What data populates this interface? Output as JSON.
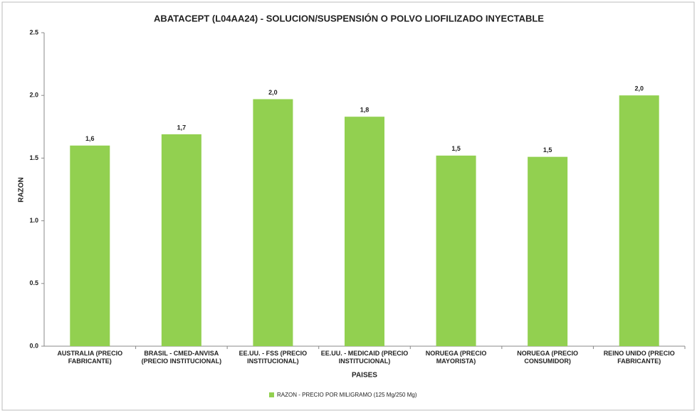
{
  "chart_data": {
    "type": "bar",
    "title": "ABATACEPT (L04AA24) - SOLUCION/SUSPENSIÓN O POLVO LIOFILIZADO INYECTABLE",
    "x_label": "PAISES",
    "y_label": "RAZON",
    "categories": [
      "AUSTRALIA (PRECIO FABRICANTE)",
      "BRASIL - CMED-ANVISA (PRECIO INSTITUCIONAL)",
      "EE.UU. - FSS (PRECIO INSTITUCIONAL)",
      "EE.UU. - MEDICAID (PRECIO INSTITUCIONAL)",
      "NORUEGA (PRECIO MAYORISTA)",
      "NORUEGA (PRECIO CONSUMIDOR)",
      "REINO UNIDO (PRECIO FABRICANTE)"
    ],
    "series": [
      {
        "name": "RAZON - PRECIO POR MILIGRAMO (125 Mg/250 Mg)",
        "color": "#92d050",
        "values": [
          1.6,
          1.69,
          1.97,
          1.83,
          1.52,
          1.51,
          2.0
        ],
        "value_labels": [
          "1,6",
          "1,7",
          "2,0",
          "1,8",
          "1,5",
          "1,5",
          "2,0"
        ]
      }
    ],
    "ylim": [
      0,
      2.5
    ],
    "yticks": [
      {
        "value": 0,
        "label": "0.0"
      },
      0.5,
      {
        "value": 1,
        "label": "1.0"
      },
      1.5,
      {
        "value": 2,
        "label": "2.0"
      },
      2.5
    ],
    "legend": "bottom"
  }
}
